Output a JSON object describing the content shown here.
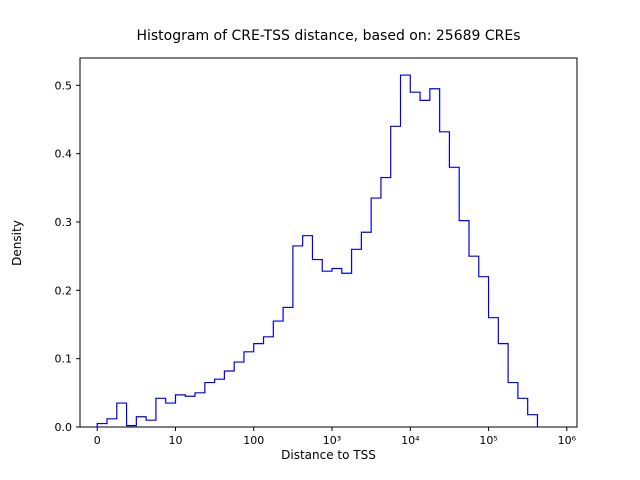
{
  "chart_data": {
    "type": "bar",
    "subtype": "step-histogram",
    "title": "Histogram of CRE-TSS distance, based on: 25689 CREs",
    "xlabel": "Distance to TSS",
    "ylabel": "Density",
    "n_cres": "25689",
    "x_scale": "log10-decade axis units (0 tick shown one decade left of 10)",
    "legend": "none",
    "grid": "off",
    "axis": {
      "xlim": [
        -0.22,
        6.13
      ],
      "ylim": [
        0,
        0.54
      ],
      "x_ticks": [
        {
          "u": 0,
          "label": "0"
        },
        {
          "u": 1,
          "label": "10"
        },
        {
          "u": 2,
          "label": "100"
        },
        {
          "u": 3,
          "label": "10³"
        },
        {
          "u": 4,
          "label": "10⁴"
        },
        {
          "u": 5,
          "label": "10⁵"
        },
        {
          "u": 6,
          "label": "10⁶"
        }
      ],
      "y_ticks": [
        {
          "v": 0.0,
          "label": "0.0"
        },
        {
          "v": 0.1,
          "label": "0.1"
        },
        {
          "v": 0.2,
          "label": "0.2"
        },
        {
          "v": 0.3,
          "label": "0.3"
        },
        {
          "v": 0.4,
          "label": "0.4"
        },
        {
          "v": 0.5,
          "label": "0.5"
        }
      ]
    },
    "bins": {
      "start": 0,
      "width": 0.125,
      "unit": "log10(distance to TSS), axis units"
    },
    "densities": [
      0.005,
      0.012,
      0.035,
      0.002,
      0.015,
      0.01,
      0.042,
      0.035,
      0.047,
      0.045,
      0.05,
      0.065,
      0.07,
      0.082,
      0.095,
      0.11,
      0.122,
      0.132,
      0.155,
      0.175,
      0.265,
      0.28,
      0.245,
      0.228,
      0.232,
      0.225,
      0.26,
      0.285,
      0.335,
      0.365,
      0.44,
      0.515,
      0.49,
      0.478,
      0.495,
      0.432,
      0.38,
      0.302,
      0.25,
      0.22,
      0.16,
      0.122,
      0.065,
      0.042,
      0.018
    ],
    "style": {
      "line_color": "#0000ee",
      "frame_color": "#000000",
      "background": "#ffffff"
    }
  }
}
